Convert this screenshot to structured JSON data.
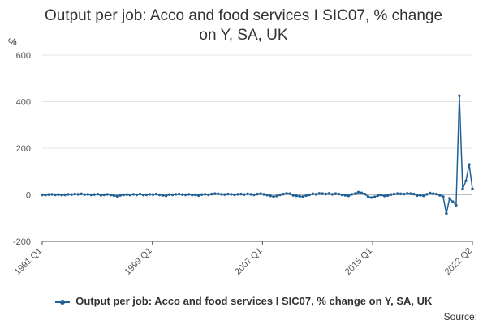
{
  "title_line1": "Output per job: Acco and food services I SIC07, % change",
  "title_line2": "on Y, SA, UK",
  "source": "Source:",
  "chart_data": {
    "type": "line",
    "ylabel": "%",
    "ylim": [
      -200,
      600
    ],
    "yticks": [
      -200,
      0,
      200,
      400,
      600
    ],
    "xticks": [
      "1991 Q1",
      "1999 Q1",
      "2007 Q1",
      "2015 Q1",
      "2022 Q2"
    ],
    "x_start": "1991 Q1",
    "x_end": "2022 Q2",
    "grid": true,
    "legend_position": "bottom",
    "series": [
      {
        "name": "Output per job: Acco and food services I SIC07, % change on Y, SA, UK",
        "color": "#206095",
        "values": [
          0,
          -1,
          1,
          2,
          0,
          1,
          -1,
          0,
          2,
          1,
          3,
          2,
          4,
          1,
          2,
          0,
          1,
          3,
          -2,
          0,
          2,
          -1,
          -3,
          -6,
          -2,
          0,
          1,
          -1,
          2,
          0,
          3,
          -1,
          0,
          2,
          1,
          3,
          0,
          -2,
          -4,
          1,
          0,
          2,
          3,
          1,
          0,
          2,
          -1,
          0,
          -3,
          1,
          2,
          0,
          3,
          5,
          4,
          2,
          1,
          3,
          2,
          0,
          2,
          3,
          1,
          4,
          2,
          0,
          3,
          5,
          2,
          -1,
          -4,
          -8,
          -5,
          0,
          3,
          6,
          5,
          -2,
          -4,
          -6,
          -8,
          -3,
          0,
          4,
          2,
          6,
          5,
          3,
          6,
          2,
          5,
          3,
          0,
          -2,
          -4,
          2,
          5,
          11,
          8,
          3,
          -8,
          -12,
          -9,
          -3,
          -1,
          -5,
          -3,
          1,
          3,
          5,
          4,
          3,
          6,
          5,
          3,
          -3,
          -2,
          -4,
          2,
          7,
          5,
          3,
          -2,
          -8,
          -80,
          -15,
          -30,
          -45,
          425,
          25,
          60,
          130,
          25
        ]
      }
    ]
  }
}
